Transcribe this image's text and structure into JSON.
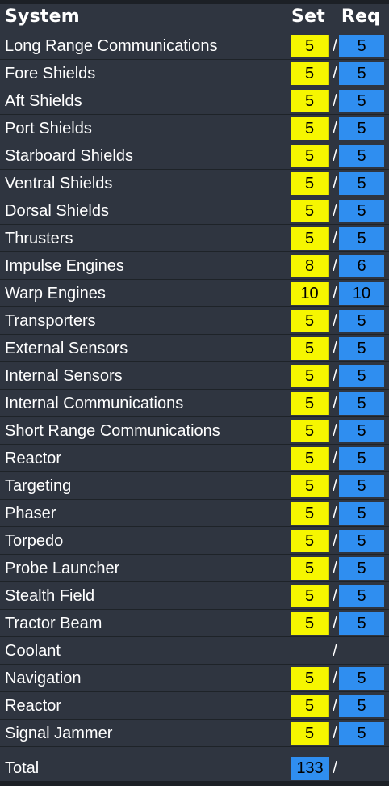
{
  "header": {
    "system": "System",
    "set": "Set",
    "req": "Req"
  },
  "rows": [
    {
      "name": "Long Range Communications",
      "set": "5",
      "req": "5"
    },
    {
      "name": "Fore Shields",
      "set": "5",
      "req": "5"
    },
    {
      "name": "Aft Shields",
      "set": "5",
      "req": "5"
    },
    {
      "name": "Port Shields",
      "set": "5",
      "req": "5"
    },
    {
      "name": "Starboard Shields",
      "set": "5",
      "req": "5"
    },
    {
      "name": "Ventral Shields",
      "set": "5",
      "req": "5"
    },
    {
      "name": "Dorsal Shields",
      "set": "5",
      "req": "5"
    },
    {
      "name": "Thrusters",
      "set": "5",
      "req": "5"
    },
    {
      "name": "Impulse Engines",
      "set": "8",
      "req": "6"
    },
    {
      "name": "Warp Engines",
      "set": "10",
      "req": "10"
    },
    {
      "name": "Transporters",
      "set": "5",
      "req": "5"
    },
    {
      "name": "External Sensors",
      "set": "5",
      "req": "5"
    },
    {
      "name": "Internal Sensors",
      "set": "5",
      "req": "5"
    },
    {
      "name": "Internal Communications",
      "set": "5",
      "req": "5"
    },
    {
      "name": "Short Range Communications",
      "set": "5",
      "req": "5"
    },
    {
      "name": "Reactor",
      "set": "5",
      "req": "5"
    },
    {
      "name": "Targeting",
      "set": "5",
      "req": "5"
    },
    {
      "name": "Phaser",
      "set": "5",
      "req": "5"
    },
    {
      "name": "Torpedo",
      "set": "5",
      "req": "5"
    },
    {
      "name": "Probe Launcher",
      "set": "5",
      "req": "5"
    },
    {
      "name": "Stealth Field",
      "set": "5",
      "req": "5"
    },
    {
      "name": "Tractor Beam",
      "set": "5",
      "req": "5"
    },
    {
      "name": "Coolant",
      "set": "",
      "req": ""
    },
    {
      "name": "Navigation",
      "set": "5",
      "req": "5"
    },
    {
      "name": "Reactor",
      "set": "5",
      "req": "5"
    },
    {
      "name": "Signal Jammer",
      "set": "5",
      "req": "5"
    }
  ],
  "total": {
    "label": "Total",
    "value": "133"
  },
  "separator": "/",
  "colors": {
    "background": "#2f3540",
    "set_fill": "#f6f600",
    "req_fill": "#2f8ef0",
    "text": "#ffffff"
  }
}
